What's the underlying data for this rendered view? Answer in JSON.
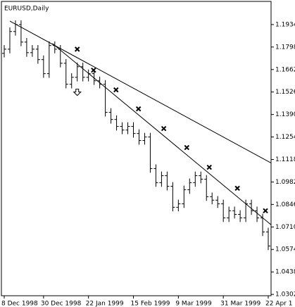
{
  "chart_data": {
    "type": "ohlc",
    "title": "EURUSD,Daily",
    "color": "#000000",
    "categories": [
      "8 Dec 1998",
      null,
      null,
      null,
      null,
      null,
      null,
      "30 Dec 1998",
      null,
      null,
      null,
      null,
      null,
      null,
      null,
      "22 Jan 1999",
      null,
      null,
      null,
      null,
      null,
      null,
      null,
      "15 Feb 1999",
      null,
      null,
      null,
      null,
      null,
      null,
      null,
      "9 Mar 1999",
      null,
      null,
      null,
      null,
      null,
      null,
      null,
      "31 Mar 1999",
      null,
      null,
      null,
      null,
      null,
      null,
      null,
      "22 Apr 1"
    ],
    "open": [
      1.176,
      1.1785,
      1.1892,
      1.1934,
      1.1828,
      1.1764,
      1.1785,
      1.1722,
      1.1637,
      1.1807,
      1.1785,
      1.17,
      1.1573,
      1.1615,
      1.1679,
      1.1615,
      1.1637,
      1.1594,
      1.1573,
      1.1403,
      1.136,
      1.1318,
      1.1296,
      1.1318,
      1.1275,
      1.1233,
      1.1254,
      1.1063,
      1.0978,
      1.102,
      1.0956,
      1.0829,
      1.085,
      1.0935,
      1.0978,
      1.102,
      1.0999,
      1.0893,
      1.0872,
      1.085,
      1.0765,
      1.0808,
      1.0786,
      1.0765,
      1.085,
      1.0808,
      1.0765,
      1.068
    ],
    "high": [
      1.181,
      1.1917,
      1.1959,
      1.1959,
      1.1853,
      1.181,
      1.181,
      1.1747,
      1.1832,
      1.1832,
      1.181,
      1.1725,
      1.164,
      1.1704,
      1.1704,
      1.1662,
      1.1662,
      1.1619,
      1.1598,
      1.1428,
      1.1385,
      1.1343,
      1.1343,
      1.1343,
      1.13,
      1.1279,
      1.1279,
      1.1088,
      1.1045,
      1.1045,
      1.0981,
      1.0875,
      1.096,
      1.1003,
      1.1045,
      1.1045,
      1.1024,
      1.0918,
      1.0897,
      1.0875,
      1.0833,
      1.0833,
      1.0811,
      1.0875,
      1.0875,
      1.0833,
      1.079,
      1.0705
    ],
    "low": [
      1.1735,
      1.176,
      1.1867,
      1.1803,
      1.1739,
      1.1739,
      1.1697,
      1.1612,
      1.1612,
      1.176,
      1.1675,
      1.1548,
      1.1548,
      1.159,
      1.159,
      1.159,
      1.1569,
      1.1548,
      1.1378,
      1.1335,
      1.1293,
      1.1271,
      1.1271,
      1.125,
      1.1208,
      1.1208,
      1.1038,
      1.0953,
      1.0953,
      1.0931,
      1.0804,
      1.0804,
      1.0825,
      1.091,
      1.0953,
      1.0974,
      1.0868,
      1.0847,
      1.0825,
      1.074,
      1.074,
      1.0761,
      1.074,
      1.074,
      1.0783,
      1.074,
      1.0655,
      1.057
    ],
    "close": [
      1.1785,
      1.1892,
      1.1934,
      1.1828,
      1.1764,
      1.1785,
      1.1722,
      1.1637,
      1.1807,
      1.1785,
      1.17,
      1.1573,
      1.1615,
      1.1679,
      1.1615,
      1.1637,
      1.1594,
      1.1573,
      1.1403,
      1.136,
      1.1318,
      1.1296,
      1.1318,
      1.1275,
      1.1233,
      1.1254,
      1.1063,
      1.0978,
      1.102,
      1.0956,
      1.0829,
      1.085,
      1.0935,
      1.0978,
      1.102,
      1.0999,
      1.0893,
      1.0872,
      1.085,
      1.0765,
      1.0808,
      1.0786,
      1.0765,
      1.085,
      1.0808,
      1.0765,
      1.068,
      1.0595
    ],
    "trendlines": [
      {
        "x": [
          1,
          47.5
        ],
        "values": [
          1.1955,
          1.1097
        ]
      },
      {
        "x": [
          8.6,
          47.5
        ],
        "values": [
          1.1819,
          1.0723
        ]
      }
    ],
    "cross_markers": {
      "x": [
        13.0,
        15.9,
        19.9,
        23.9,
        28.4,
        32.5,
        36.5,
        41.5,
        46.5
      ],
      "values": [
        1.1785,
        1.1658,
        1.1539,
        1.1424,
        1.1305,
        1.119,
        1.1071,
        1.0944,
        1.0808
      ]
    },
    "arrow_markers": {
      "x": [
        13.0
      ],
      "values": [
        1.1522
      ]
    },
    "ylim": [
      1.0294,
      1.2074
    ],
    "yticks": [
      1.1934,
      1.1798,
      1.1662,
      1.1526,
      {
        "value": 1.139,
        "label": "1.1390"
      },
      1.1254,
      1.1118,
      1.0982,
      1.0846,
      {
        "value": 1.071,
        "label": "1.0710"
      },
      1.0574,
      1.0438,
      1.0302
    ]
  }
}
